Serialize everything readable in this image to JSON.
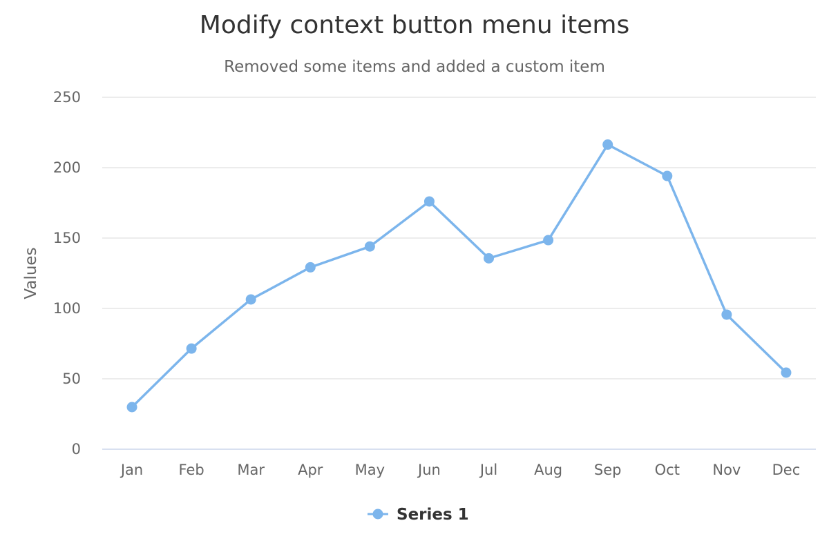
{
  "chart_data": {
    "type": "line",
    "title": "Modify context button menu items",
    "subtitle": "Removed some items and added a custom item",
    "xlabel": "",
    "ylabel": "Values",
    "categories": [
      "Jan",
      "Feb",
      "Mar",
      "Apr",
      "May",
      "Jun",
      "Jul",
      "Aug",
      "Sep",
      "Oct",
      "Nov",
      "Dec"
    ],
    "series": [
      {
        "name": "Series 1",
        "values": [
          29.9,
          71.5,
          106.4,
          129.2,
          144.0,
          176.0,
          135.6,
          148.5,
          216.4,
          194.1,
          95.6,
          54.4
        ],
        "color": "#7cb5ec"
      }
    ],
    "ylim": [
      0,
      250
    ],
    "yticks": [
      0,
      50,
      100,
      150,
      200,
      250
    ],
    "grid": true,
    "legend": "bottom-center"
  }
}
